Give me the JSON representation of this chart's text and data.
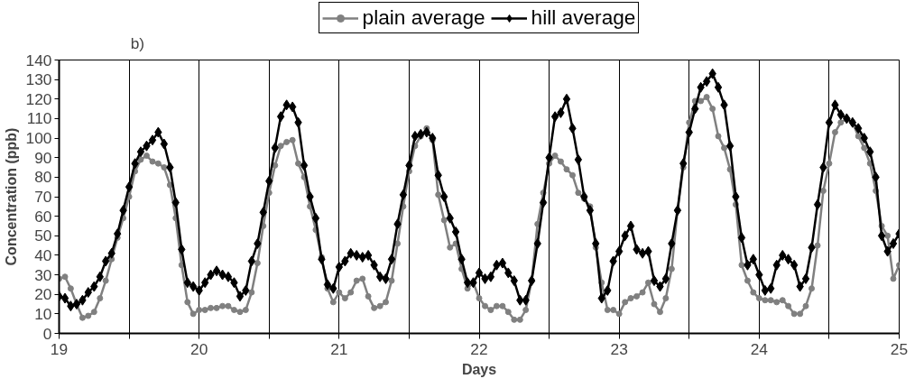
{
  "chart_data": {
    "type": "line",
    "xlabel": "Days",
    "ylabel": "Concentration (ppb)",
    "annotations": [
      "b)"
    ],
    "x": [
      19,
      19.042,
      19.083,
      19.125,
      19.167,
      19.208,
      19.25,
      19.292,
      19.333,
      19.375,
      19.417,
      19.458,
      19.5,
      19.542,
      19.583,
      19.625,
      19.667,
      19.708,
      19.75,
      19.792,
      19.833,
      19.875,
      19.917,
      19.958,
      20,
      20.042,
      20.083,
      20.125,
      20.167,
      20.208,
      20.25,
      20.292,
      20.333,
      20.375,
      20.417,
      20.458,
      20.5,
      20.542,
      20.583,
      20.625,
      20.667,
      20.708,
      20.75,
      20.792,
      20.833,
      20.875,
      20.917,
      20.958,
      21,
      21.042,
      21.083,
      21.125,
      21.167,
      21.208,
      21.25,
      21.292,
      21.333,
      21.375,
      21.417,
      21.458,
      21.5,
      21.542,
      21.583,
      21.625,
      21.667,
      21.708,
      21.75,
      21.792,
      21.833,
      21.875,
      21.917,
      21.958,
      22,
      22.042,
      22.083,
      22.125,
      22.167,
      22.208,
      22.25,
      22.292,
      22.333,
      22.375,
      22.417,
      22.458,
      22.5,
      22.542,
      22.583,
      22.625,
      22.667,
      22.708,
      22.75,
      22.792,
      22.833,
      22.875,
      22.917,
      22.958,
      23,
      23.042,
      23.083,
      23.125,
      23.167,
      23.208,
      23.25,
      23.292,
      23.333,
      23.375,
      23.417,
      23.458,
      23.5,
      23.542,
      23.583,
      23.625,
      23.667,
      23.708,
      23.75,
      23.792,
      23.833,
      23.875,
      23.917,
      23.958,
      24,
      24.042,
      24.083,
      24.125,
      24.167,
      24.208,
      24.25,
      24.292,
      24.333,
      24.375,
      24.417,
      24.458,
      24.5,
      24.542,
      24.583,
      24.625,
      24.667,
      24.708,
      24.75,
      24.792,
      24.833,
      24.875,
      24.917,
      24.958,
      25
    ],
    "series": [
      {
        "name": "plain average",
        "color": "#808080",
        "marker": "circle",
        "values": [
          28,
          29,
          23,
          15,
          8,
          9,
          11,
          18,
          27,
          38,
          49,
          59,
          70,
          83,
          89,
          91,
          88,
          87,
          85,
          76,
          59,
          35,
          16,
          10,
          12,
          12,
          13,
          13,
          14,
          14,
          12,
          11,
          12,
          21,
          36,
          55,
          72,
          86,
          96,
          98,
          99,
          87,
          80,
          65,
          53,
          39,
          23,
          16,
          21,
          18,
          21,
          27,
          28,
          19,
          13,
          14,
          16,
          27,
          46,
          65,
          83,
          96,
          101,
          105,
          99,
          71,
          58,
          44,
          46,
          33,
          23,
          26,
          18,
          14,
          12,
          14,
          14,
          11,
          7,
          7,
          12,
          27,
          56,
          72,
          87,
          91,
          88,
          84,
          81,
          72,
          69,
          65,
          44,
          26,
          12,
          12,
          10,
          16,
          18,
          19,
          21,
          26,
          15,
          11,
          18,
          33,
          63,
          85,
          108,
          119,
          119,
          121,
          115,
          101,
          95,
          84,
          66,
          35,
          27,
          21,
          18,
          17,
          17,
          16,
          17,
          14,
          10,
          10,
          14,
          23,
          45,
          73,
          87,
          103,
          108,
          110,
          108,
          101,
          95,
          87,
          73,
          55,
          50,
          28,
          35
        ]
      },
      {
        "name": "hill average",
        "color": "#000000",
        "marker": "diamond",
        "values": [
          19,
          18,
          14,
          15,
          17,
          21,
          24,
          29,
          37,
          41,
          51,
          63,
          75,
          87,
          93,
          96,
          99,
          103,
          97,
          85,
          67,
          43,
          26,
          24,
          22,
          26,
          30,
          32,
          30,
          29,
          26,
          19,
          22,
          37,
          46,
          62,
          78,
          95,
          111,
          117,
          116,
          108,
          86,
          70,
          59,
          38,
          25,
          23,
          34,
          37,
          41,
          40,
          39,
          40,
          35,
          29,
          28,
          38,
          56,
          71,
          86,
          101,
          102,
          103,
          100,
          81,
          70,
          59,
          52,
          38,
          26,
          26,
          31,
          28,
          29,
          35,
          36,
          31,
          27,
          17,
          17,
          27,
          46,
          67,
          90,
          111,
          113,
          120,
          105,
          89,
          70,
          63,
          46,
          18,
          22,
          37,
          42,
          50,
          55,
          43,
          41,
          42,
          27,
          24,
          28,
          46,
          63,
          87,
          103,
          115,
          126,
          129,
          133,
          126,
          117,
          96,
          70,
          49,
          35,
          38,
          30,
          22,
          23,
          35,
          40,
          38,
          35,
          24,
          28,
          44,
          66,
          85,
          108,
          117,
          112,
          110,
          108,
          105,
          100,
          93,
          80,
          50,
          42,
          46,
          51
        ]
      }
    ],
    "xlim": [
      19,
      25
    ],
    "xticks": [
      19,
      {
        "value": 19.5,
        "label": null
      },
      20,
      {
        "value": 20.5,
        "label": null
      },
      21,
      {
        "value": 21.5,
        "label": null
      },
      22,
      {
        "value": 22.5,
        "label": null
      },
      23,
      {
        "value": 23.5,
        "label": null
      },
      24,
      {
        "value": 24.5,
        "label": null
      },
      25
    ],
    "ylim": [
      0,
      140
    ],
    "yticks": [
      0,
      10,
      20,
      30,
      40,
      50,
      60,
      70,
      80,
      90,
      100,
      110,
      120,
      130,
      140
    ],
    "grid": "x",
    "legend": "top",
    "line_style": "solid"
  }
}
